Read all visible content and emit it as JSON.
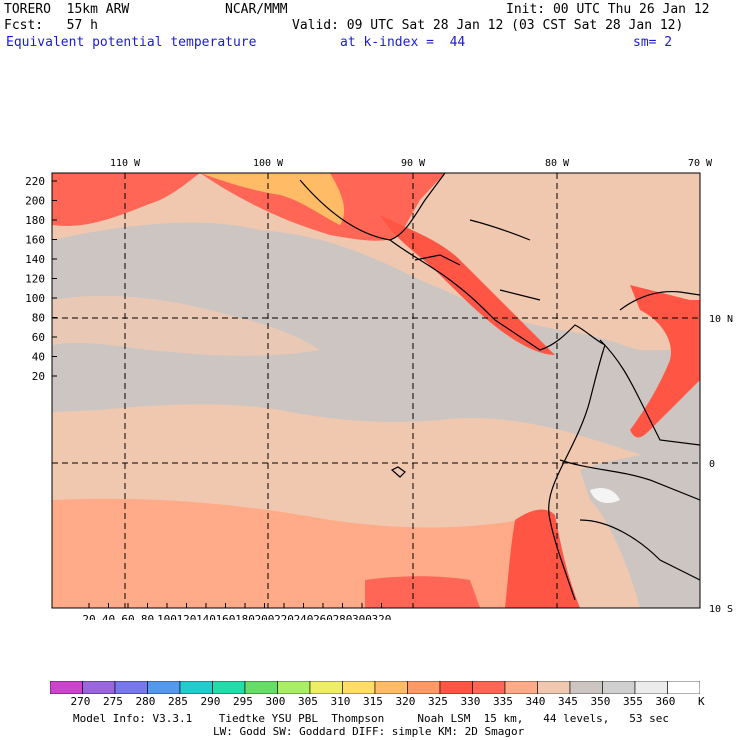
{
  "header": {
    "model_name": "TORERO  15km ARW",
    "center": "NCAR/MMM",
    "init": "Init: 00 UTC Thu 26 Jan 12",
    "fcst": "Fcst:   57 h",
    "valid": "Valid: 09 UTC Sat 28 Jan 12 (03 CST Sat 28 Jan 12)",
    "field": "Equivalent potential temperature",
    "level": "at k-index =  44",
    "smooth": "sm= 2"
  },
  "map": {
    "top_lon_labels": [
      "110 W",
      "100 W",
      "90 W",
      "80 W",
      "70 W"
    ],
    "right_lat_labels": [
      "10 N",
      "0",
      "10 S"
    ],
    "y_ticks": [
      "220",
      "200",
      "180",
      "160",
      "140",
      "120",
      "100",
      "80",
      "60",
      "40",
      "20"
    ],
    "x_ticks": [
      "20",
      "40",
      "60",
      "80",
      "100",
      "120",
      "140",
      "160",
      "180",
      "200",
      "220",
      "240",
      "260",
      "280",
      "300",
      "320"
    ]
  },
  "colorbar": {
    "labels": [
      "270",
      "275",
      "280",
      "285",
      "290",
      "295",
      "300",
      "305",
      "310",
      "315",
      "320",
      "325",
      "330",
      "335",
      "340",
      "345",
      "350",
      "355",
      "360"
    ],
    "unit": "K",
    "colors": [
      "#cc44cc",
      "#9966dd",
      "#7777ee",
      "#5599ee",
      "#22cccc",
      "#22ddaa",
      "#66dd66",
      "#aaee66",
      "#eeee66",
      "#ffdd66",
      "#ffbb66",
      "#ff9966",
      "#ff5544",
      "#ff6655",
      "#ffaa88",
      "#f0c8b0",
      "#cdc5c2",
      "#d0d0d0",
      "#ececec",
      "#ffffff"
    ]
  },
  "footer": {
    "line1": "Model Info: V3.3.1    Tiedtke YSU PBL  Thompson     Noah LSM  15 km,   44 levels,   53 sec",
    "line2": "LW: Godd SW: Goddard DIFF: simple KM: 2D Smagor"
  }
}
